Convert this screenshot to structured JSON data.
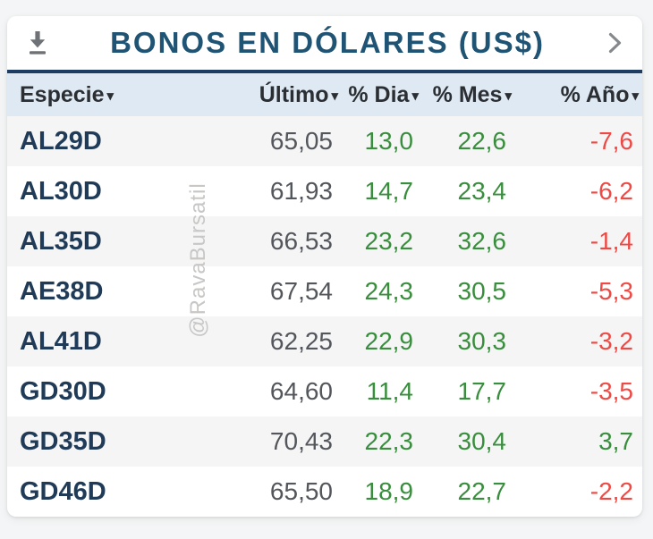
{
  "widget": {
    "title": "BONOS EN DÓLARES (US$)"
  },
  "sort_indicator": "▾",
  "watermark": "@RavaBursatil",
  "table": {
    "columns": [
      {
        "key": "especie",
        "label": "Especie",
        "align": "left",
        "colored": false
      },
      {
        "key": "ultimo",
        "label": "Último",
        "align": "right",
        "colored": false
      },
      {
        "key": "dia",
        "label": "% Dia",
        "align": "right",
        "colored": true
      },
      {
        "key": "mes",
        "label": "% Mes",
        "align": "right",
        "colored": true
      },
      {
        "key": "ano",
        "label": "% Año",
        "align": "right",
        "colored": true
      }
    ],
    "rows": [
      {
        "especie": "AL29D",
        "ultimo": "65,05",
        "dia": "13,0",
        "mes": "22,6",
        "ano": "-7,6"
      },
      {
        "especie": "AL30D",
        "ultimo": "61,93",
        "dia": "14,7",
        "mes": "23,4",
        "ano": "-6,2"
      },
      {
        "especie": "AL35D",
        "ultimo": "66,53",
        "dia": "23,2",
        "mes": "32,6",
        "ano": "-1,4"
      },
      {
        "especie": "AE38D",
        "ultimo": "67,54",
        "dia": "24,3",
        "mes": "30,5",
        "ano": "-5,3"
      },
      {
        "especie": "AL41D",
        "ultimo": "62,25",
        "dia": "22,9",
        "mes": "30,3",
        "ano": "-3,2"
      },
      {
        "especie": "GD30D",
        "ultimo": "64,60",
        "dia": "11,4",
        "mes": "17,7",
        "ano": "-3,5"
      },
      {
        "especie": "GD35D",
        "ultimo": "70,43",
        "dia": "22,3",
        "mes": "30,4",
        "ano": "3,7"
      },
      {
        "especie": "GD46D",
        "ultimo": "65,50",
        "dia": "18,9",
        "mes": "22,7",
        "ano": "-2,2"
      }
    ]
  },
  "icons": {
    "download": "download-icon",
    "chevron": "chevron-right-icon",
    "sort": "sort-caret-icon"
  },
  "colors": {
    "page_bg": "#f4f5f6",
    "title": "#205474",
    "divider": "#1d3d63",
    "header_bg": "#dfe9f3",
    "header_text": "#2b2f33",
    "ticker": "#203b58",
    "value": "#53565b",
    "positive": "#388e3c",
    "negative": "#ee4944",
    "row_alt": "#f5f5f6",
    "watermark": "#c9c7c5",
    "icon": "#6e7276",
    "chevron": "#85888c"
  }
}
